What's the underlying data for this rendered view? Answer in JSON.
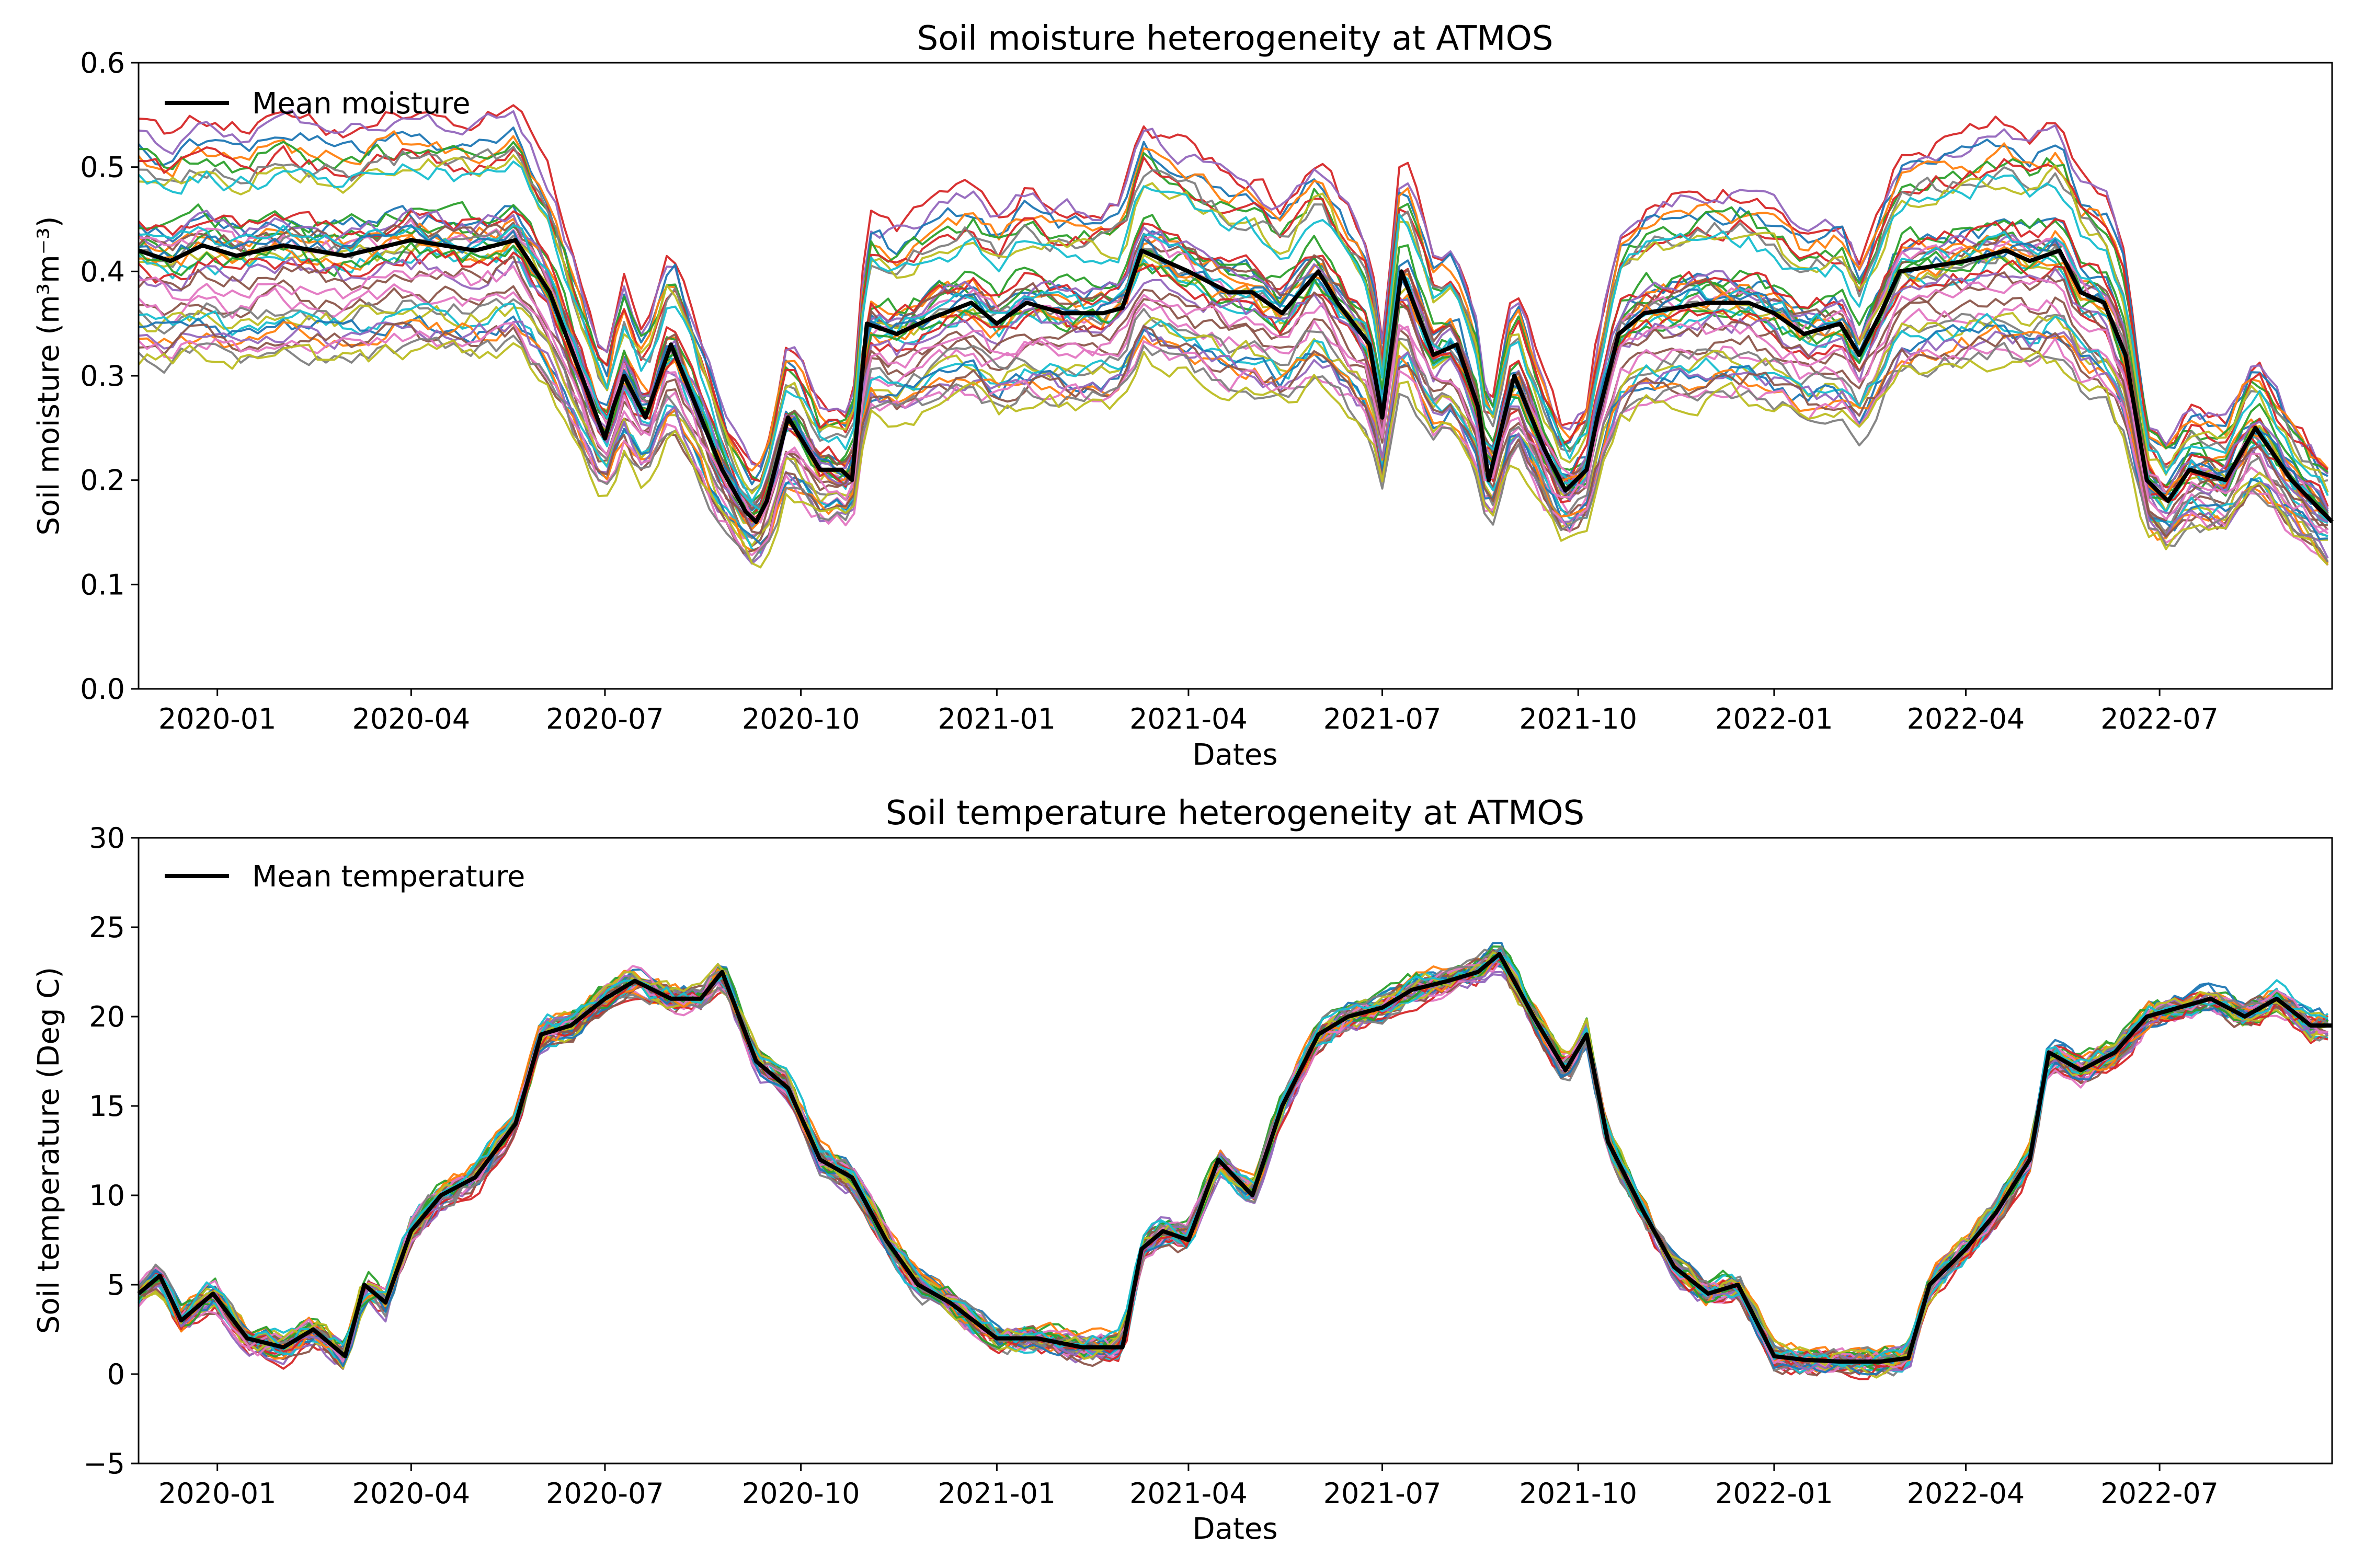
{
  "figure": {
    "background": "#ffffff",
    "mean_color": "#000000",
    "palette": [
      "#1f77b4",
      "#ff7f0e",
      "#2ca02c",
      "#d62728",
      "#9467bd",
      "#8c564b",
      "#e377c2",
      "#7f7f7f",
      "#bcbd22",
      "#17becf"
    ]
  },
  "chart_data": [
    {
      "type": "line",
      "title": "Soil moisture heterogeneity at ATMOS",
      "xlabel": "Dates",
      "ylabel": "Soil moisture (m³m⁻³)",
      "ylim": [
        0.0,
        0.6
      ],
      "yticks": [
        0.0,
        0.1,
        0.2,
        0.3,
        0.4,
        0.5,
        0.6
      ],
      "ytick_labels": [
        "0.0",
        "0.1",
        "0.2",
        "0.3",
        "0.4",
        "0.5",
        "0.6"
      ],
      "xlim": [
        "2019-11-25",
        "2022-09-20"
      ],
      "xticks": [
        "2020-01-01",
        "2020-04-01",
        "2020-07-01",
        "2020-10-01",
        "2021-01-01",
        "2021-04-01",
        "2021-07-01",
        "2021-10-01",
        "2022-01-01",
        "2022-04-01",
        "2022-07-01"
      ],
      "xtick_labels": [
        "2020-01",
        "2020-04",
        "2020-07",
        "2020-10",
        "2021-01",
        "2021-04",
        "2021-07",
        "2021-10",
        "2022-01",
        "2022-04",
        "2022-07"
      ],
      "grid": false,
      "legend_position": "upper left",
      "legend": [
        "Mean moisture"
      ],
      "sensor_count": 40,
      "series": [
        {
          "name": "Mean moisture",
          "x": [
            "2019-11-25",
            "2019-12-10",
            "2019-12-25",
            "2020-01-10",
            "2020-02-01",
            "2020-03-01",
            "2020-04-01",
            "2020-05-01",
            "2020-05-20",
            "2020-06-05",
            "2020-06-20",
            "2020-07-01",
            "2020-07-05",
            "2020-07-10",
            "2020-07-20",
            "2020-08-01",
            "2020-08-15",
            "2020-08-25",
            "2020-09-05",
            "2020-09-10",
            "2020-09-15",
            "2020-09-25",
            "2020-10-10",
            "2020-10-20",
            "2020-10-25",
            "2020-11-01",
            "2020-11-15",
            "2020-12-01",
            "2020-12-20",
            "2021-01-01",
            "2021-01-15",
            "2021-02-01",
            "2021-02-20",
            "2021-03-01",
            "2021-03-10",
            "2021-04-01",
            "2021-04-20",
            "2021-05-01",
            "2021-05-15",
            "2021-06-01",
            "2021-06-10",
            "2021-06-25",
            "2021-07-01",
            "2021-07-10",
            "2021-07-25",
            "2021-08-05",
            "2021-08-15",
            "2021-08-20",
            "2021-09-01",
            "2021-09-15",
            "2021-09-25",
            "2021-10-05",
            "2021-10-10",
            "2021-10-20",
            "2021-11-01",
            "2021-12-01",
            "2021-12-20",
            "2022-01-01",
            "2022-01-15",
            "2022-02-01",
            "2022-02-10",
            "2022-02-20",
            "2022-03-01",
            "2022-04-01",
            "2022-04-20",
            "2022-05-01",
            "2022-05-15",
            "2022-05-25",
            "2022-06-05",
            "2022-06-15",
            "2022-06-25",
            "2022-07-05",
            "2022-07-15",
            "2022-08-01",
            "2022-08-15",
            "2022-09-01",
            "2022-09-20"
          ],
          "y": [
            0.42,
            0.41,
            0.425,
            0.415,
            0.425,
            0.415,
            0.43,
            0.42,
            0.43,
            0.38,
            0.3,
            0.24,
            0.27,
            0.3,
            0.26,
            0.33,
            0.26,
            0.21,
            0.17,
            0.16,
            0.18,
            0.26,
            0.21,
            0.21,
            0.2,
            0.35,
            0.34,
            0.355,
            0.37,
            0.35,
            0.37,
            0.36,
            0.36,
            0.365,
            0.42,
            0.4,
            0.38,
            0.38,
            0.36,
            0.4,
            0.37,
            0.33,
            0.26,
            0.4,
            0.32,
            0.33,
            0.27,
            0.2,
            0.3,
            0.23,
            0.19,
            0.21,
            0.26,
            0.34,
            0.36,
            0.37,
            0.37,
            0.36,
            0.34,
            0.35,
            0.32,
            0.36,
            0.4,
            0.41,
            0.42,
            0.41,
            0.42,
            0.38,
            0.37,
            0.32,
            0.2,
            0.18,
            0.21,
            0.2,
            0.25,
            0.2,
            0.16
          ]
        }
      ]
    },
    {
      "type": "line",
      "title": "Soil temperature heterogeneity at ATMOS",
      "xlabel": "Dates",
      "ylabel": "Soil temperature (Deg C)",
      "ylim": [
        -5,
        30
      ],
      "yticks": [
        -5,
        0,
        5,
        10,
        15,
        20,
        25,
        30
      ],
      "ytick_labels": [
        "−5",
        "0",
        "5",
        "10",
        "15",
        "20",
        "25",
        "30"
      ],
      "xlim": [
        "2019-11-25",
        "2022-09-20"
      ],
      "xticks": [
        "2020-01-01",
        "2020-04-01",
        "2020-07-01",
        "2020-10-01",
        "2021-01-01",
        "2021-04-01",
        "2021-07-01",
        "2021-10-01",
        "2022-01-01",
        "2022-04-01",
        "2022-07-01"
      ],
      "xtick_labels": [
        "2020-01",
        "2020-04",
        "2020-07",
        "2020-10",
        "2021-01",
        "2021-04",
        "2021-07",
        "2021-10",
        "2022-01",
        "2022-04",
        "2022-07"
      ],
      "grid": false,
      "legend_position": "upper left",
      "legend": [
        "Mean temperature"
      ],
      "sensor_count": 40,
      "series": [
        {
          "name": "Mean temperature",
          "x": [
            "2019-11-25",
            "2019-12-05",
            "2019-12-15",
            "2019-12-30",
            "2020-01-15",
            "2020-02-01",
            "2020-02-15",
            "2020-03-01",
            "2020-03-10",
            "2020-03-20",
            "2020-04-01",
            "2020-04-15",
            "2020-05-01",
            "2020-05-20",
            "2020-06-01",
            "2020-06-15",
            "2020-07-01",
            "2020-07-15",
            "2020-08-01",
            "2020-08-15",
            "2020-08-25",
            "2020-09-10",
            "2020-09-25",
            "2020-10-10",
            "2020-10-25",
            "2020-11-10",
            "2020-11-25",
            "2020-12-10",
            "2021-01-01",
            "2021-01-20",
            "2021-02-10",
            "2021-03-01",
            "2021-03-10",
            "2021-03-20",
            "2021-04-01",
            "2021-04-15",
            "2021-05-01",
            "2021-05-15",
            "2021-06-01",
            "2021-06-15",
            "2021-07-01",
            "2021-07-15",
            "2021-08-01",
            "2021-08-15",
            "2021-08-25",
            "2021-09-10",
            "2021-09-25",
            "2021-10-05",
            "2021-10-15",
            "2021-11-01",
            "2021-11-15",
            "2021-12-01",
            "2021-12-15",
            "2022-01-01",
            "2022-01-15",
            "2022-02-01",
            "2022-02-20",
            "2022-03-05",
            "2022-03-15",
            "2022-04-01",
            "2022-04-15",
            "2022-05-01",
            "2022-05-10",
            "2022-05-25",
            "2022-06-10",
            "2022-06-25",
            "2022-07-10",
            "2022-07-25",
            "2022-08-10",
            "2022-08-25",
            "2022-09-10",
            "2022-09-20"
          ],
          "y": [
            4.5,
            5.5,
            3.0,
            4.5,
            2.0,
            1.5,
            2.5,
            1.0,
            5.0,
            4.0,
            8.0,
            10.0,
            11.0,
            14.0,
            19.0,
            19.5,
            21.0,
            22.0,
            21.0,
            21.0,
            22.5,
            17.5,
            16.0,
            12.0,
            11.0,
            7.5,
            5.0,
            4.0,
            2.0,
            2.0,
            1.5,
            1.5,
            7.0,
            8.0,
            7.5,
            12.0,
            10.0,
            15.0,
            19.0,
            20.0,
            20.5,
            21.5,
            22.0,
            22.5,
            23.5,
            20.0,
            17.0,
            19.0,
            13.0,
            9.0,
            6.0,
            4.5,
            5.0,
            1.0,
            0.8,
            0.7,
            0.7,
            0.9,
            5.0,
            7.0,
            9.0,
            12.0,
            18.0,
            17.0,
            18.0,
            20.0,
            20.5,
            21.0,
            20.0,
            21.0,
            19.5,
            19.5
          ]
        }
      ]
    }
  ]
}
